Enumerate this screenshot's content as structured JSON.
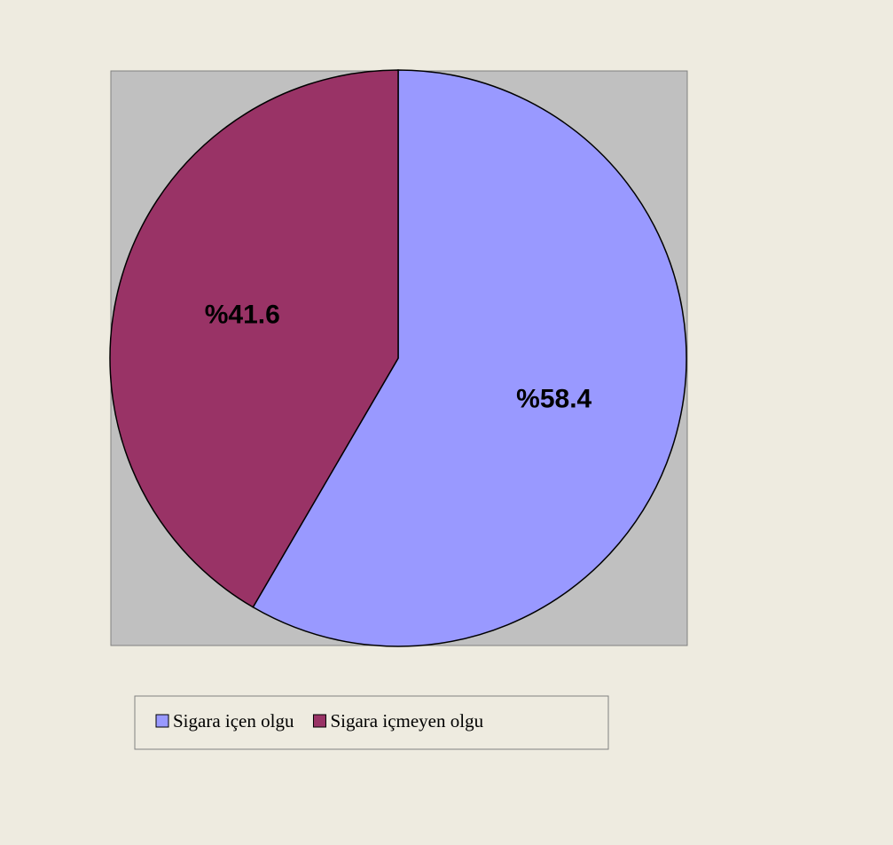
{
  "chart_data": {
    "type": "pie",
    "categories": [
      "Sigara içen olgu",
      "Sigara içmeyen olgu"
    ],
    "values": [
      58.4,
      41.6
    ],
    "value_labels": [
      "%58.4",
      "%41.6"
    ],
    "colors": [
      "#9999ff",
      "#993366"
    ],
    "legend": "bottom"
  }
}
